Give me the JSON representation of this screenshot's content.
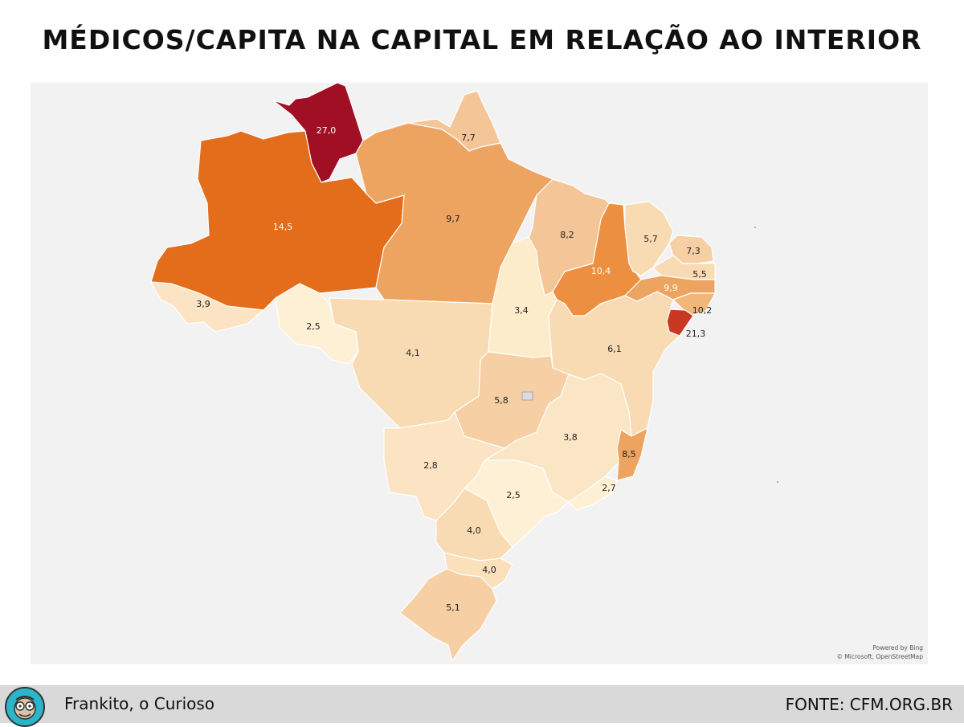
{
  "title": "MÉDICOS/CAPITA NA CAPITAL EM RELAÇÃO AO INTERIOR",
  "map": {
    "attribution_line1": "Powered by Bing",
    "attribution_line2": "© Microsoft, OpenStreetMap",
    "colors": {
      "background": "#f2f2f2",
      "lightest": "#fdf0d5",
      "light": "#f9dbb3",
      "medium": "#f4c596",
      "medium_dark": "#eea461",
      "orange": "#ed8f40",
      "dark_orange": "#e36d1b",
      "red": "#c93821",
      "dark_red": "#a10f25"
    },
    "states": [
      {
        "name": "Roraima",
        "value": "27,0"
      },
      {
        "name": "Amazonas",
        "value": "14,5"
      },
      {
        "name": "Amapá",
        "value": "7,7"
      },
      {
        "name": "Pará",
        "value": "9,7"
      },
      {
        "name": "Acre",
        "value": "3,9"
      },
      {
        "name": "Rondônia",
        "value": "2,5"
      },
      {
        "name": "Maranhão",
        "value": "8,2"
      },
      {
        "name": "Piauí",
        "value": "10,4"
      },
      {
        "name": "Ceará",
        "value": "5,7"
      },
      {
        "name": "Rio Grande do Norte",
        "value": "7,3"
      },
      {
        "name": "Paraíba",
        "value": "5,5"
      },
      {
        "name": "Pernambuco",
        "value": "9,9"
      },
      {
        "name": "Alagoas",
        "value": "10,2"
      },
      {
        "name": "Sergipe",
        "value": "21,3"
      },
      {
        "name": "Tocantins",
        "value": "3,4"
      },
      {
        "name": "Bahia",
        "value": "6,1"
      },
      {
        "name": "Mato Grosso",
        "value": "4,1"
      },
      {
        "name": "Goiás",
        "value": "5,8"
      },
      {
        "name": "Minas Gerais",
        "value": "3,8"
      },
      {
        "name": "Espírito Santo",
        "value": "8,5"
      },
      {
        "name": "Mato Grosso do Sul",
        "value": "2,8"
      },
      {
        "name": "São Paulo",
        "value": "2,5"
      },
      {
        "name": "Rio de Janeiro",
        "value": "2,7"
      },
      {
        "name": "Paraná",
        "value": "4,0"
      },
      {
        "name": "Santa Catarina",
        "value": "4,0"
      },
      {
        "name": "Rio Grande do Sul",
        "value": "5,1"
      }
    ]
  },
  "footer": {
    "author": "Frankito, o Curioso",
    "source": "FONTE: CFM.ORG.BR",
    "avatar_icon": "monkey-avatar-icon"
  }
}
